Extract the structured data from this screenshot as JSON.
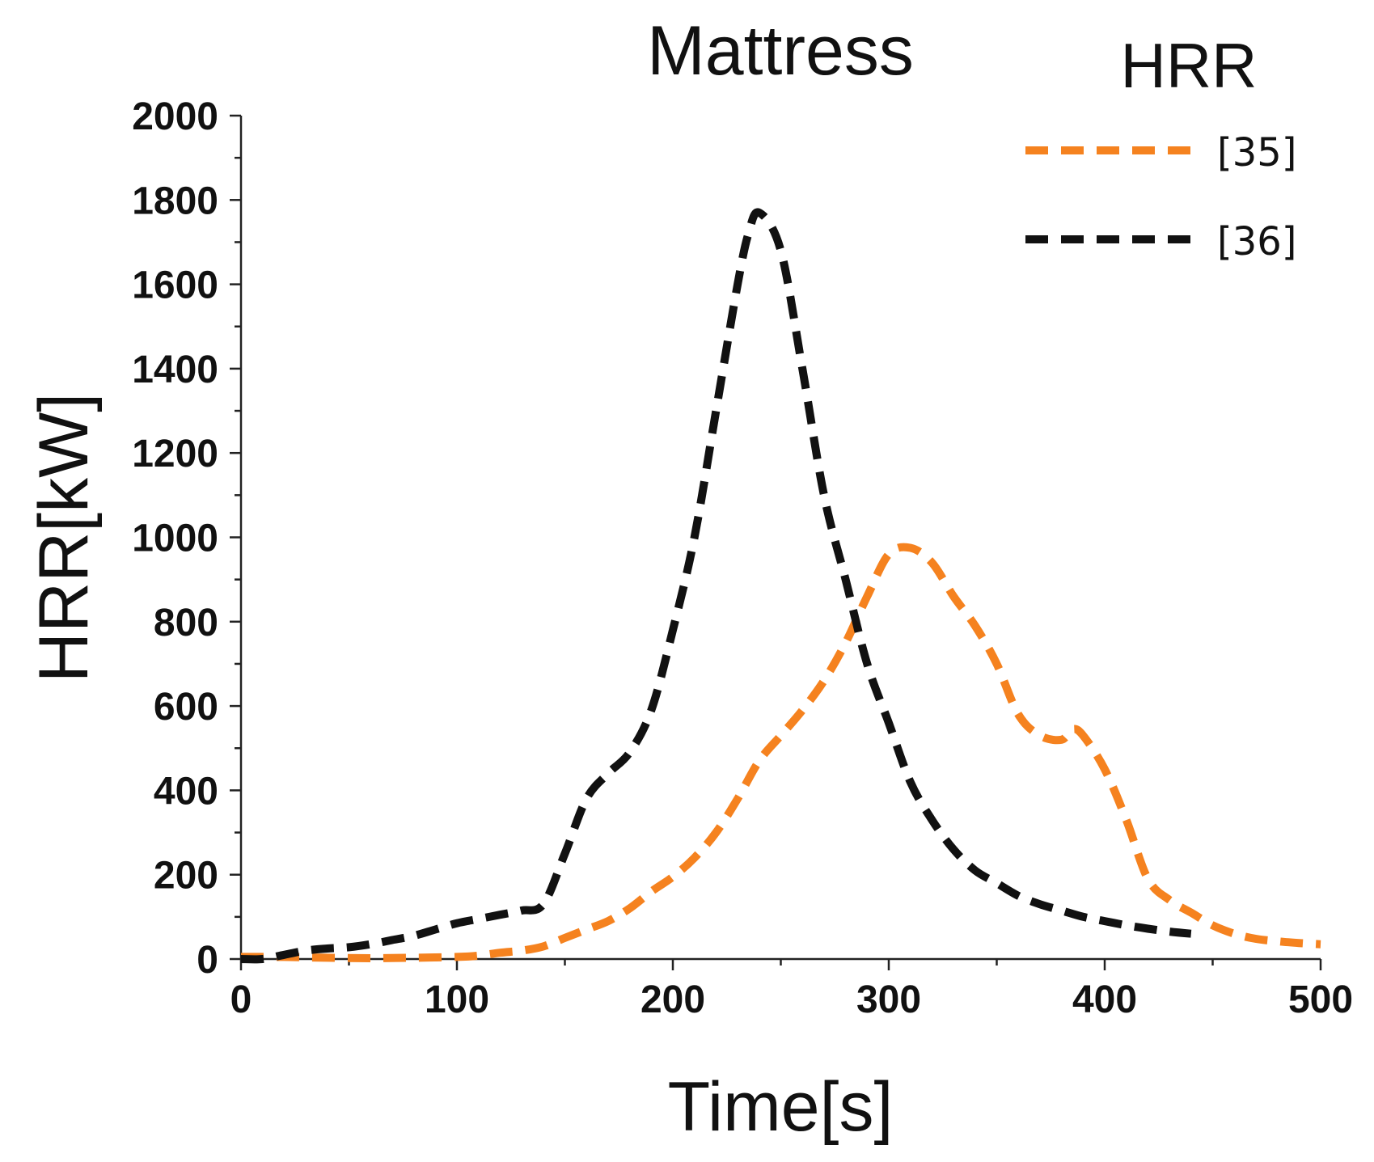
{
  "chart_data": {
    "type": "line",
    "title": "Mattress",
    "xlabel": "Time[s]",
    "ylabel": "HRR[kW]",
    "xlim": [
      0,
      500
    ],
    "ylim": [
      0,
      2000
    ],
    "xticks": [
      0,
      100,
      200,
      300,
      400,
      500
    ],
    "yticks": [
      0,
      200,
      400,
      600,
      800,
      1000,
      1200,
      1400,
      1600,
      1800,
      2000
    ],
    "grid": false,
    "legend": {
      "title": "HRR",
      "position": "top-right"
    },
    "series": [
      {
        "name": "[35]",
        "color": "#f5821f",
        "style": "dashed",
        "x": [
          0,
          20,
          40,
          60,
          80,
          100,
          110,
          120,
          130,
          140,
          150,
          160,
          170,
          180,
          190,
          200,
          210,
          220,
          230,
          240,
          250,
          260,
          270,
          280,
          290,
          300,
          310,
          320,
          330,
          340,
          350,
          360,
          370,
          380,
          385,
          390,
          400,
          410,
          420,
          430,
          440,
          450,
          460,
          470,
          480,
          490,
          500
        ],
        "y": [
          5,
          5,
          3,
          2,
          3,
          5,
          8,
          15,
          20,
          30,
          50,
          70,
          90,
          120,
          160,
          195,
          240,
          300,
          380,
          470,
          530,
          590,
          660,
          750,
          860,
          960,
          975,
          940,
          860,
          790,
          700,
          580,
          530,
          520,
          545,
          530,
          450,
          330,
          190,
          140,
          110,
          80,
          60,
          48,
          42,
          38,
          35
        ]
      },
      {
        "name": "[36]",
        "color": "#111111",
        "style": "dashed",
        "x": [
          0,
          10,
          20,
          30,
          40,
          50,
          60,
          70,
          80,
          90,
          100,
          110,
          120,
          130,
          140,
          150,
          160,
          170,
          180,
          190,
          200,
          210,
          220,
          230,
          235,
          240,
          250,
          260,
          270,
          280,
          290,
          300,
          310,
          320,
          330,
          340,
          350,
          360,
          370,
          380,
          390,
          400,
          410,
          420,
          430,
          440
        ],
        "y": [
          0,
          0,
          10,
          20,
          25,
          28,
          35,
          45,
          55,
          70,
          85,
          95,
          105,
          115,
          130,
          250,
          380,
          440,
          490,
          590,
          780,
          1000,
          1300,
          1600,
          1720,
          1770,
          1680,
          1400,
          1100,
          900,
          700,
          560,
          420,
          330,
          260,
          210,
          180,
          150,
          130,
          115,
          100,
          90,
          80,
          72,
          65,
          60
        ]
      }
    ]
  }
}
